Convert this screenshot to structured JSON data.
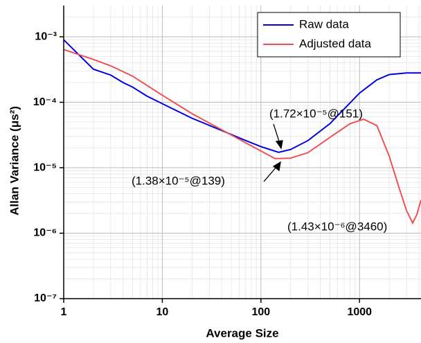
{
  "chart_data": {
    "type": "line",
    "x_label": "Average Size",
    "y_label": "Allan Variance (μs²)",
    "xscale": "log",
    "yscale": "log",
    "grid": true,
    "legend": "upper right",
    "xlim": [
      1,
      4200
    ],
    "ylim": [
      1e-07,
      0.003
    ],
    "xticks": [
      1,
      10,
      100,
      1000
    ],
    "yticks": [
      {
        "value": 1e-07,
        "label": "10⁻⁷"
      },
      {
        "value": 1e-06,
        "label": "10⁻⁶"
      },
      {
        "value": 1e-05,
        "label": "10⁻⁵"
      },
      {
        "value": 0.0001,
        "label": "10⁻⁴"
      },
      {
        "value": 0.001,
        "label": "10⁻³"
      }
    ],
    "series": [
      {
        "name": "Raw data",
        "color": "#0000e0",
        "x": [
          1,
          2,
          3,
          4,
          5,
          7,
          10,
          20,
          40,
          70,
          100,
          151,
          200,
          300,
          500,
          1000,
          1500,
          2000,
          3000,
          4200
        ],
        "values": [
          0.0009,
          0.00032,
          0.00026,
          0.0002,
          0.00017,
          0.000124,
          9.5e-05,
          5.7e-05,
          3.7e-05,
          2.6e-05,
          2.1e-05,
          1.72e-05,
          1.9e-05,
          2.6e-05,
          4.7e-05,
          0.000138,
          0.00022,
          0.000265,
          0.00028,
          0.00028
        ]
      },
      {
        "name": "Adjusted data",
        "color": "#f05050",
        "x": [
          1,
          2,
          3,
          5,
          10,
          20,
          40,
          70,
          100,
          139,
          200,
          300,
          500,
          800,
          1100,
          1500,
          2000,
          2500,
          3000,
          3460,
          3800,
          4200
        ],
        "values": [
          0.00064,
          0.00045,
          0.00036,
          0.00025,
          0.000128,
          6.7e-05,
          3.8e-05,
          2.4e-05,
          1.8e-05,
          1.38e-05,
          1.4e-05,
          1.7e-05,
          2.9e-05,
          4.7e-05,
          5.5e-05,
          4.4e-05,
          1.5e-05,
          5.1e-06,
          2.2e-06,
          1.43e-06,
          1.9e-06,
          3.2e-06
        ]
      }
    ],
    "annotations": [
      {
        "text": "(1.72×10⁻⁵@151)"
      },
      {
        "text": "(1.38×10⁻⁵@139)"
      },
      {
        "text": "(1.43×10⁻⁶@3460)"
      }
    ]
  }
}
